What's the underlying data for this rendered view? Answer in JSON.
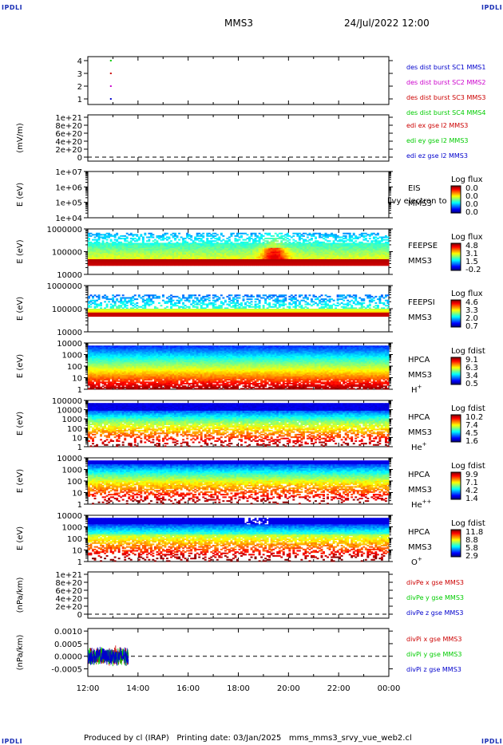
{
  "header": {
    "corner_tl": "IPDLI",
    "corner_tr": "IPDLI",
    "corner_bl": "IPDLI",
    "corner_br": "IPDLI",
    "title": "MMS3",
    "datetime": "24/Jul/2022 12:00"
  },
  "footer": {
    "text": "Produced by cl (IRAP)   Printing date: 03/Jan/2025   mms_mms3_srvy_vue_web2.cl"
  },
  "x_axis": {
    "ticks": [
      "12:00",
      "14:00",
      "16:00",
      "18:00",
      "20:00",
      "22:00",
      "00:00"
    ]
  },
  "chart_data": [
    {
      "type": "scatter",
      "panel": "burst",
      "yticks": [
        "4",
        "3",
        "2",
        "1"
      ],
      "ylim": [
        0.5,
        4.5
      ],
      "series": [
        {
          "name": "des dist burst SC1 MMS1",
          "color": "#0000cc",
          "x": [
            "12:55"
          ],
          "y": [
            1
          ]
        },
        {
          "name": "des dist burst SC2 MMS2",
          "color": "#cc00cc",
          "x": [
            "12:55"
          ],
          "y": [
            2
          ]
        },
        {
          "name": "des dist burst SC3 MMS3",
          "color": "#cc0000",
          "x": [
            "12:55"
          ],
          "y": [
            3
          ]
        },
        {
          "name": "des dist burst SC4 MMS4",
          "color": "#00cc00",
          "x": [
            "12:55"
          ],
          "y": [
            4
          ]
        }
      ]
    },
    {
      "type": "line",
      "panel": "edi",
      "ylabel": "(mV/m)",
      "yticks": [
        "1e+21",
        "8e+20",
        "6e+20",
        "4e+20",
        "2e+20",
        "0"
      ],
      "series": [
        {
          "name": "edi ex gse l2 MMS3",
          "color": "#cc0000"
        },
        {
          "name": "edi ey gse l2 MMS3",
          "color": "#00cc00"
        },
        {
          "name": "edi ez gse l2 MMS3",
          "color": "#0000cc"
        }
      ]
    },
    {
      "type": "heatmap",
      "panel": "eis",
      "ylabel": "E (eV)",
      "yticks": [
        "1e+07",
        "1e+06",
        "1e+05",
        "1e+04"
      ],
      "labels": [
        "EIS",
        "MMS3"
      ],
      "overlay_text": "llvy electron to",
      "colorbar_title": "Log flux",
      "colorbar_ticks": [
        "0.0",
        "0.0",
        "0.0",
        "0.0"
      ]
    },
    {
      "type": "heatmap",
      "panel": "feepse",
      "ylabel": "E (eV)",
      "yticks": [
        "1000000",
        "100000",
        "10000"
      ],
      "labels": [
        "FEEPSE",
        "MMS3"
      ],
      "colorbar_title": "Log flux",
      "colorbar_ticks": [
        "4.8",
        "3.1",
        "1.5",
        "-0.2"
      ]
    },
    {
      "type": "heatmap",
      "panel": "feepsi",
      "ylabel": "E (eV)",
      "yticks": [
        "1000000",
        "100000",
        "10000"
      ],
      "labels": [
        "FEEPSI",
        "MMS3"
      ],
      "colorbar_title": "Log flux",
      "colorbar_ticks": [
        "4.6",
        "3.3",
        "2.0",
        "0.7"
      ]
    },
    {
      "type": "heatmap",
      "panel": "hpca_h",
      "ylabel": "E (eV)",
      "yticks": [
        "10000",
        "1000",
        "100",
        "10",
        "1"
      ],
      "labels": [
        "HPCA",
        "MMS3"
      ],
      "species": "H",
      "species_sup": "+",
      "colorbar_title": "Log fdist",
      "colorbar_ticks": [
        "9.1",
        "6.3",
        "3.4",
        "0.5"
      ]
    },
    {
      "type": "heatmap",
      "panel": "hpca_he",
      "ylabel": "E (eV)",
      "yticks": [
        "100000",
        "10000",
        "1000",
        "100",
        "10",
        "1"
      ],
      "labels": [
        "HPCA",
        "MMS3"
      ],
      "species": "He",
      "species_sup": "+",
      "colorbar_title": "Log fdist",
      "colorbar_ticks": [
        "10.2",
        "7.4",
        "4.5",
        "1.6"
      ]
    },
    {
      "type": "heatmap",
      "panel": "hpca_hepp",
      "ylabel": "E (eV)",
      "yticks": [
        "10000",
        "1000",
        "100",
        "10",
        "1"
      ],
      "labels": [
        "HPCA",
        "MMS3"
      ],
      "species": "He",
      "species_sup": "++",
      "colorbar_title": "Log fdist",
      "colorbar_ticks": [
        "9.9",
        "7.1",
        "4.2",
        "1.4"
      ]
    },
    {
      "type": "heatmap",
      "panel": "hpca_o",
      "ylabel": "E (eV)",
      "yticks": [
        "10000",
        "1000",
        "100",
        "10",
        "1"
      ],
      "labels": [
        "HPCA",
        "MMS3"
      ],
      "species": "O",
      "species_sup": "+",
      "colorbar_title": "Log fdist",
      "colorbar_ticks": [
        "11.8",
        "8.8",
        "5.8",
        "2.9"
      ]
    },
    {
      "type": "line",
      "panel": "divpe",
      "ylabel": "(nPa/km)",
      "yticks": [
        "1e+21",
        "8e+20",
        "6e+20",
        "4e+20",
        "2e+20",
        "0"
      ],
      "series": [
        {
          "name": "divPe x gse MMS3",
          "color": "#cc0000"
        },
        {
          "name": "divPe y gse MMS3",
          "color": "#00cc00"
        },
        {
          "name": "divPe z gse MMS3",
          "color": "#0000cc"
        }
      ]
    },
    {
      "type": "line",
      "panel": "divpi",
      "ylabel": "(nPa/km)",
      "yticks": [
        "0.0010",
        "0.0005",
        "0.0000",
        "-0.0005"
      ],
      "ylim": [
        -0.0008,
        0.0011
      ],
      "data_xrange": [
        "12:00",
        "13:37"
      ],
      "series": [
        {
          "name": "divPi x gse MMS3",
          "color": "#cc0000"
        },
        {
          "name": "divPi y gse MMS3",
          "color": "#00cc00"
        },
        {
          "name": "divPi z gse MMS3",
          "color": "#0000cc"
        }
      ]
    }
  ]
}
